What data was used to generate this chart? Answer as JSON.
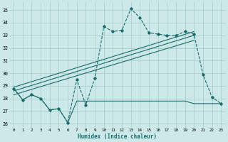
{
  "xlabel": "Humidex (Indice chaleur)",
  "background_color": "#cce8e8",
  "grid_color": "#aacfcf",
  "line_color": "#1a6b6b",
  "xlim": [
    -0.5,
    23.5
  ],
  "ylim": [
    25.7,
    35.6
  ],
  "yticks": [
    26,
    27,
    28,
    29,
    30,
    31,
    32,
    33,
    34,
    35
  ],
  "xticks": [
    0,
    1,
    2,
    3,
    4,
    5,
    6,
    7,
    8,
    9,
    10,
    11,
    12,
    13,
    14,
    15,
    16,
    17,
    18,
    19,
    20,
    21,
    22,
    23
  ],
  "series1_x": [
    0,
    1,
    2,
    3,
    4,
    5,
    6,
    7,
    8,
    9,
    10,
    11,
    12,
    13,
    14,
    15,
    16,
    17,
    18,
    19,
    20,
    21,
    22,
    23
  ],
  "series1_y": [
    28.8,
    27.9,
    28.3,
    28.0,
    27.1,
    27.2,
    26.1,
    29.5,
    27.5,
    29.6,
    33.7,
    33.3,
    33.4,
    35.1,
    34.4,
    33.2,
    33.1,
    33.0,
    33.0,
    33.3,
    33.1,
    29.9,
    28.1,
    27.6
  ],
  "series2_x": [
    0,
    1,
    2,
    3,
    4,
    5,
    6,
    7,
    8,
    9,
    10,
    11,
    12,
    13,
    14,
    15,
    16,
    17,
    18,
    19,
    20,
    21,
    22,
    23
  ],
  "series2_y": [
    28.8,
    27.9,
    28.3,
    28.0,
    27.1,
    27.2,
    26.1,
    27.8,
    27.8,
    27.8,
    27.8,
    27.8,
    27.8,
    27.8,
    27.8,
    27.8,
    27.8,
    27.8,
    27.8,
    27.8,
    27.6,
    27.6,
    27.6,
    27.6
  ],
  "trend_lines": [
    {
      "x": [
        0,
        20
      ],
      "y": [
        28.3,
        32.6
      ]
    },
    {
      "x": [
        0,
        20
      ],
      "y": [
        28.6,
        33.0
      ]
    },
    {
      "x": [
        0,
        20
      ],
      "y": [
        28.9,
        33.3
      ]
    }
  ]
}
